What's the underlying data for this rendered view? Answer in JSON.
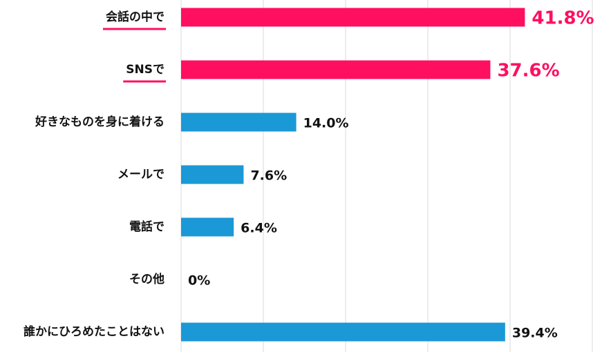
{
  "chart_data": {
    "type": "bar",
    "orientation": "horizontal",
    "categories": [
      "会話の中で",
      "SNSで",
      "好きなものを身に着ける",
      "メールで",
      "電話で",
      "その他",
      "誰かにひろめたことはない"
    ],
    "values": [
      41.8,
      37.6,
      14.0,
      7.6,
      6.4,
      0,
      39.4
    ],
    "value_labels": [
      "41.8%",
      "37.6%",
      "14.0%",
      "7.6%",
      "6.4%",
      "0%",
      "39.4%"
    ],
    "colors": [
      "#ff0f5f",
      "#ff0f5f",
      "#1b98d6",
      "#1b98d6",
      "#1b98d6",
      "#1b98d6",
      "#1b98d6"
    ],
    "highlight_color": "#ff0f5f",
    "xlim": [
      0,
      50
    ],
    "xticks": [
      0,
      10,
      20,
      30,
      40,
      50
    ],
    "grid": true
  }
}
